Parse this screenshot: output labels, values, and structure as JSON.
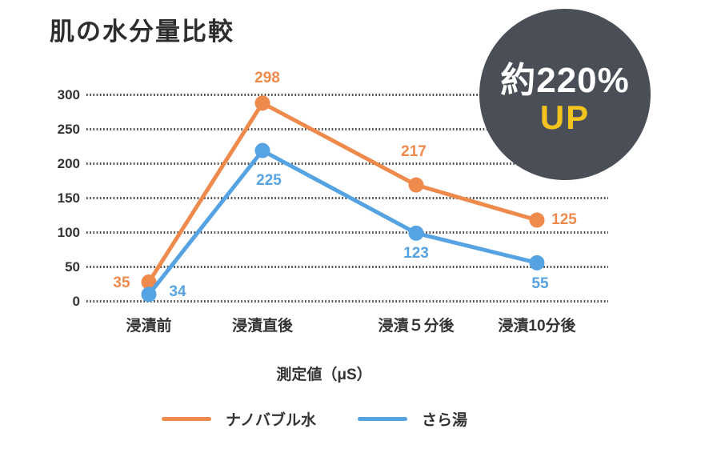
{
  "title": "肌の水分量比較",
  "badge": {
    "line1": "約220%",
    "line2": "UP",
    "bg_color": "#4A4F57",
    "line1_color": "#FFFFFF",
    "line2_color": "#F2C41D"
  },
  "axis_caption": "測定値（μS）",
  "legend": [
    {
      "label": "ナノバブル水",
      "color": "#EF8A4D"
    },
    {
      "label": "さら湯",
      "color": "#55A3E2"
    }
  ],
  "chart_data": {
    "type": "line",
    "title": "肌の水分量比較",
    "xlabel": "測定値（μS）",
    "ylabel": "",
    "categories": [
      "浸漬前",
      "浸漬直後",
      "浸漬５分後",
      "浸漬10分後"
    ],
    "series": [
      {
        "name": "ナノバブル水",
        "color": "#EF8A4D",
        "values": [
          35,
          298,
          217,
          125
        ],
        "plotted_values": [
          28,
          288,
          169,
          118
        ]
      },
      {
        "name": "さら湯",
        "color": "#55A3E2",
        "values": [
          34,
          225,
          123,
          55
        ],
        "plotted_values": [
          10,
          219,
          99,
          56
        ]
      }
    ],
    "y_ticks": [
      0,
      50,
      100,
      150,
      200,
      250,
      300
    ],
    "ylim": [
      0,
      300
    ],
    "grid": "horizontal-dotted",
    "grid_color": "#4d4d4d",
    "legend_position": "bottom",
    "annotation": "約220% UP"
  }
}
